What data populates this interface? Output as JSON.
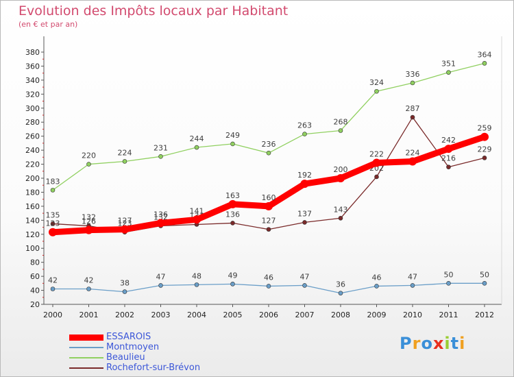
{
  "chart_data": {
    "type": "line",
    "title": "Evolution des Impôts locaux par Habitant",
    "subtitle": "(en € et par an)",
    "x": [
      "2000",
      "2001",
      "2002",
      "2003",
      "2004",
      "2005",
      "2006",
      "2007",
      "2008",
      "2009",
      "2010",
      "2011",
      "2012"
    ],
    "y_ticks": [
      "20",
      "40",
      "60",
      "80",
      "100",
      "120",
      "140",
      "160",
      "180",
      "200",
      "220",
      "240",
      "260",
      "280",
      "300",
      "320",
      "340",
      "360",
      "380"
    ],
    "ylim": [
      20,
      380
    ],
    "grid": false,
    "legend_position": "bottom-left",
    "series": [
      {
        "name": "ESSAROIS",
        "color": "#ff0000",
        "values": [
          123,
          126,
          127,
          136,
          141,
          163,
          160,
          192,
          200,
          222,
          224,
          242,
          259
        ]
      },
      {
        "name": "Montmoyen",
        "color": "#6a9ec8",
        "values": [
          42,
          42,
          38,
          47,
          48,
          49,
          46,
          47,
          36,
          46,
          47,
          50,
          50
        ]
      },
      {
        "name": "Beaulieu",
        "color": "#90d060",
        "values": [
          183,
          220,
          224,
          231,
          244,
          249,
          236,
          263,
          268,
          324,
          336,
          351,
          364
        ]
      },
      {
        "name": "Rochefort-sur-Brévon",
        "color": "#7a2a2a",
        "values": [
          135,
          132,
          123,
          132,
          134,
          136,
          127,
          137,
          143,
          202,
          287,
          216,
          229
        ]
      }
    ]
  },
  "logo": {
    "text": "Proxiti",
    "letters": [
      "P",
      "r",
      "o",
      "x",
      "i",
      "t",
      "i"
    ],
    "colors": [
      "#3a8fd8",
      "#f0a020",
      "#3a8fd8",
      "#e83020",
      "#9acd32",
      "#3a8fd8",
      "#f0a020"
    ]
  }
}
